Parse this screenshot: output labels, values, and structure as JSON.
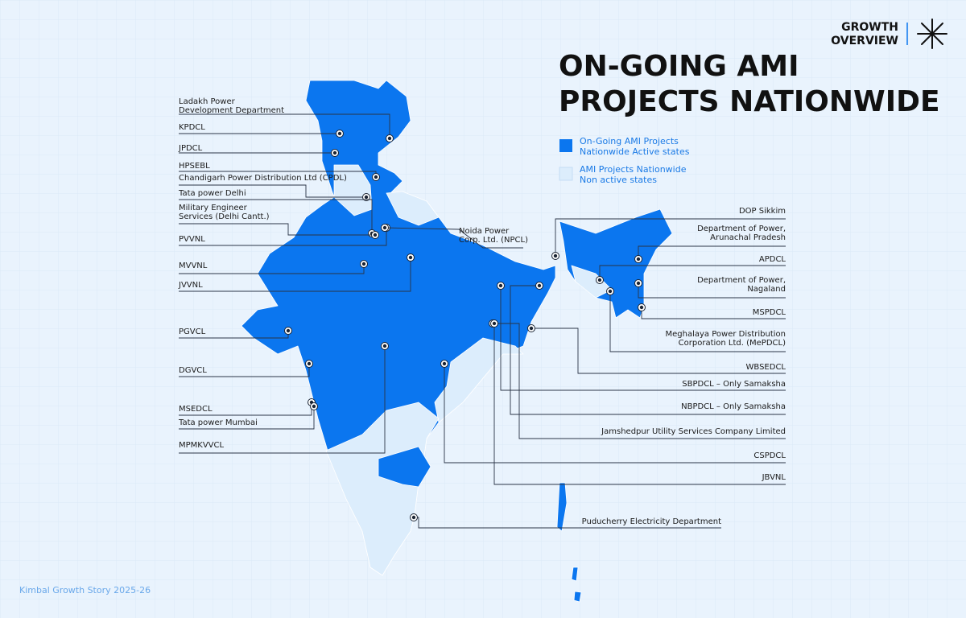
{
  "header": {
    "brand": [
      "GROWTH",
      "OVERVIEW"
    ]
  },
  "title": [
    "ON-GOING AMI",
    "PROJECTS NATIONWIDE"
  ],
  "legend": [
    {
      "label": [
        "On-Going AMI Projects",
        "Nationwide Active states"
      ]
    },
    {
      "label": [
        "AMI Projects Nationwide",
        "Non active states"
      ]
    }
  ],
  "labels": [
    [
      "Ladakh Power",
      "Development Department"
    ],
    [
      "KPDCL"
    ],
    [
      "JPDCL"
    ],
    [
      "HPSEBL"
    ],
    [
      "Chandigarh Power Distribution Ltd (CPDL)"
    ],
    [
      "Tata power Delhi"
    ],
    [
      "Military Engineer",
      "Services (Delhi Cantt.)"
    ],
    [
      "PVVNL"
    ],
    [
      "MVVNL"
    ],
    [
      "JVVNL"
    ],
    [
      "PGVCL"
    ],
    [
      "DGVCL"
    ],
    [
      "MSEDCL"
    ],
    [
      "Tata power Mumbai"
    ],
    [
      "MPMKVVCL"
    ],
    [
      "Noida Power",
      "Corp. Ltd. (NPCL)"
    ],
    [
      "DOP Sikkim"
    ],
    [
      "Department of Power,",
      "Arunachal Pradesh"
    ],
    [
      "APDCL"
    ],
    [
      "Department of Power,",
      "Nagaland"
    ],
    [
      "MSPDCL"
    ],
    [
      "Meghalaya Power Distribution",
      "Corporation Ltd. (MePDCL)"
    ],
    [
      "WBSEDCL"
    ],
    [
      "SBPDCL – Only Samaksha"
    ],
    [
      "NBPDCL – Only Samaksha"
    ],
    [
      "Jamshedpur Utility Services Company Limited"
    ],
    [
      "CSPDCL"
    ],
    [
      "JBVNL"
    ],
    [
      "Puducherry Electricity Department"
    ]
  ],
  "footer": "Kimbal Growth Story 2025-26"
}
